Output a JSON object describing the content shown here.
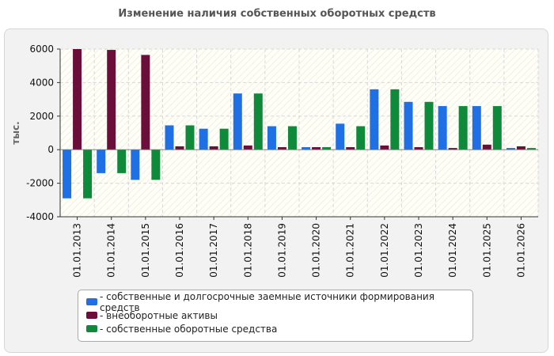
{
  "chart_data": {
    "type": "bar",
    "title": "Изменение наличия собственных оборотных средств",
    "ylabel": "тыс.",
    "xlabel": "",
    "ylim": [
      -4000,
      6000
    ],
    "yticks": [
      -4000,
      -2000,
      0,
      2000,
      4000,
      6000
    ],
    "grid": true,
    "legend_position": "bottom",
    "categories": [
      "01.01.2013",
      "01.01.2014",
      "01.01.2015",
      "01.01.2016",
      "01.01.2017",
      "01.01.2018",
      "01.01.2019",
      "01.01.2020",
      "01.01.2021",
      "01.01.2022",
      "01.01.2023",
      "01.01.2024",
      "01.01.2025",
      "01.01.2026"
    ],
    "series": [
      {
        "name": "собственные и долгосрочные заемные источники формирования средств",
        "color": "#1f6fe5",
        "values": [
          -2900,
          -1400,
          -1800,
          1450,
          1250,
          3350,
          1400,
          150,
          1550,
          3600,
          2850,
          2600,
          2600,
          100
        ]
      },
      {
        "name": "внеоборотные активы",
        "color": "#6b0f3a",
        "values": [
          6000,
          5950,
          5650,
          200,
          200,
          250,
          150,
          150,
          150,
          250,
          150,
          100,
          300,
          200
        ]
      },
      {
        "name": "собственные оборотные средства",
        "color": "#0f8a3a",
        "values": [
          -2900,
          -1400,
          -1800,
          1450,
          1250,
          3350,
          1400,
          150,
          1400,
          3600,
          2850,
          2600,
          2600,
          100
        ]
      }
    ]
  },
  "legend": {
    "items": [
      {
        "label": "- собственные и долгосрочные заемные источники формирования средств",
        "color": "#1f6fe5"
      },
      {
        "label": "- внеоборотные активы",
        "color": "#6b0f3a"
      },
      {
        "label": "- собственные оборотные средства",
        "color": "#0f8a3a"
      }
    ]
  }
}
